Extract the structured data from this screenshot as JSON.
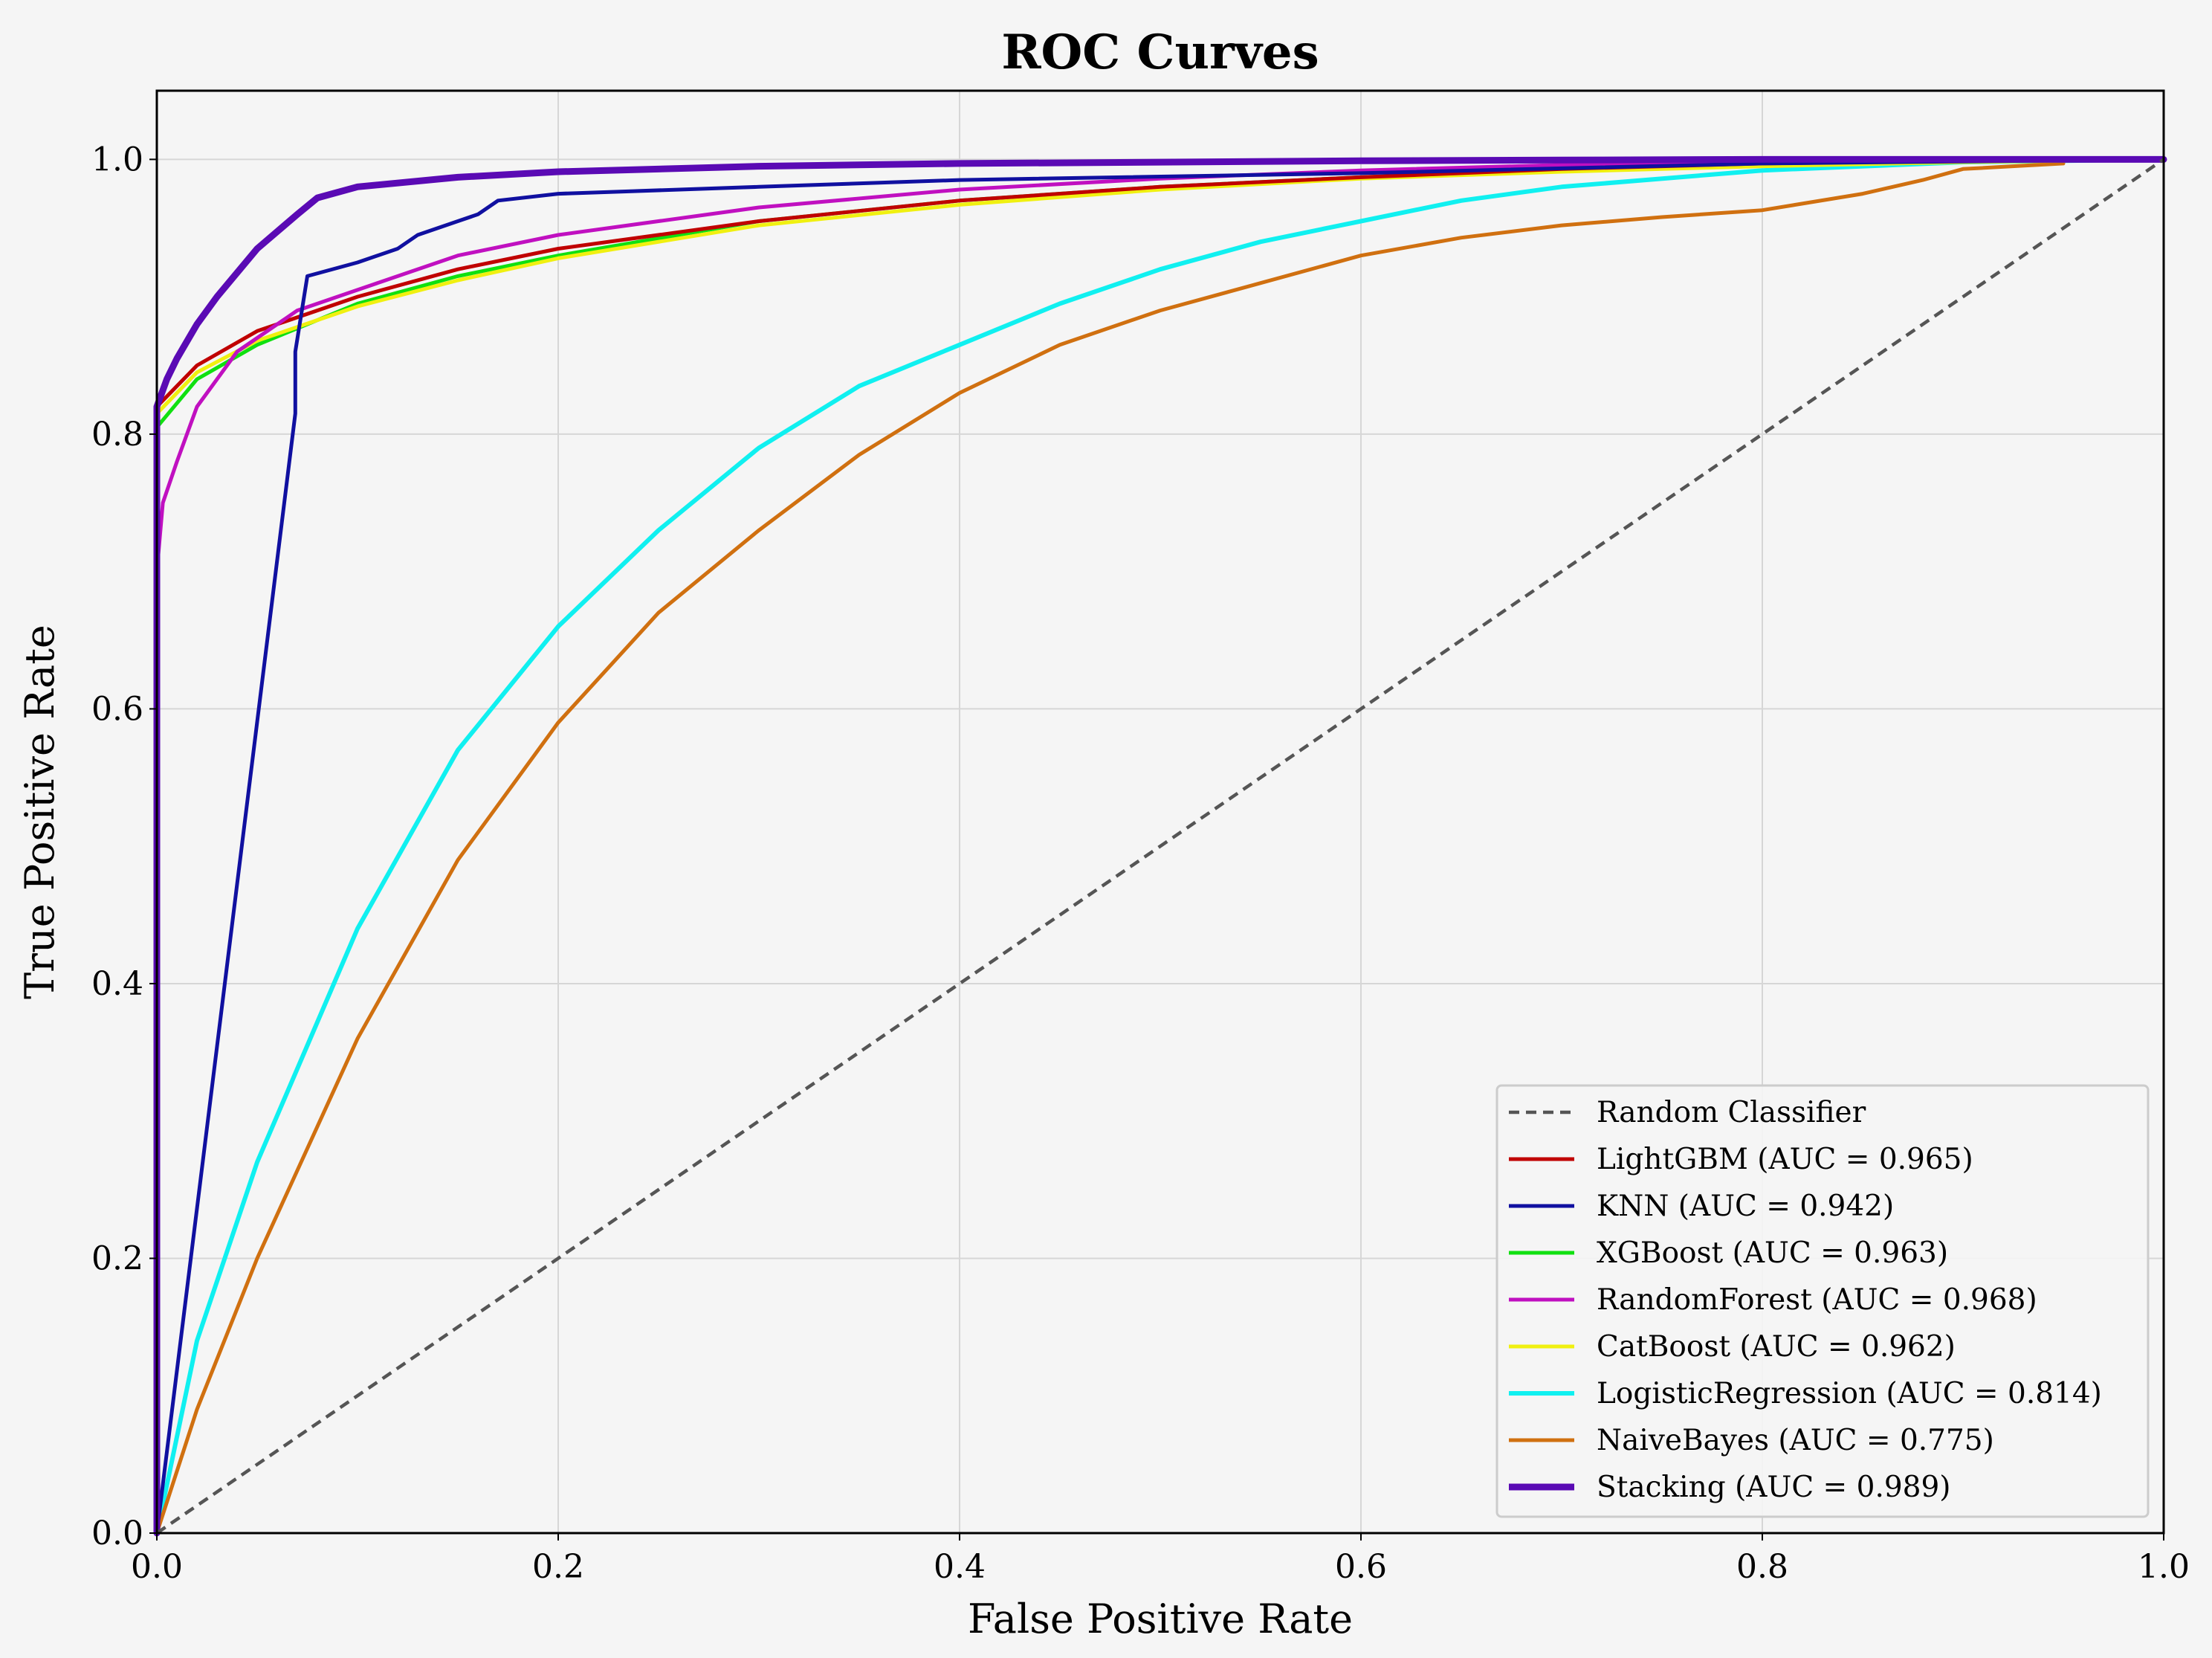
{
  "chart_data": {
    "type": "line",
    "title": "ROC Curves",
    "xlabel": "False Positive Rate",
    "ylabel": "True Positive Rate",
    "xlim": [
      0.0,
      1.0
    ],
    "ylim": [
      0.0,
      1.05
    ],
    "x_ticks": [
      "0.0",
      "0.2",
      "0.4",
      "0.6",
      "0.8",
      "1.0"
    ],
    "y_ticks": [
      "0.0",
      "0.2",
      "0.4",
      "0.6",
      "0.8",
      "1.0"
    ],
    "grid": true,
    "legend_position": "lower-right",
    "legend": [
      "Random Classifier",
      "LightGBM (AUC = 0.965)",
      "KNN (AUC = 0.942)",
      "XGBoost (AUC = 0.963)",
      "RandomForest (AUC = 0.968)",
      "CatBoost (AUC = 0.962)",
      "LogisticRegression (AUC = 0.814)",
      "NaiveBayes (AUC = 0.775)",
      "Stacking (AUC = 0.989)"
    ],
    "series": [
      {
        "name": "Random Classifier",
        "color": "#555555",
        "dashed": true,
        "width": 4.5,
        "x": [
          0,
          1
        ],
        "y": [
          0,
          1
        ]
      },
      {
        "name": "LightGBM",
        "color": "#c00000",
        "width": 5,
        "x": [
          0,
          0,
          0.02,
          0.05,
          0.1,
          0.15,
          0.2,
          0.3,
          0.4,
          0.5,
          0.6,
          0.7,
          0.8,
          0.9,
          1.0
        ],
        "y": [
          0,
          0.82,
          0.85,
          0.875,
          0.9,
          0.92,
          0.935,
          0.955,
          0.97,
          0.98,
          0.987,
          0.993,
          0.997,
          0.999,
          1.0
        ]
      },
      {
        "name": "KNN",
        "color": "#1010a0",
        "width": 5,
        "x": [
          0,
          0.069,
          0.069,
          0.075,
          0.1,
          0.12,
          0.13,
          0.14,
          0.15,
          0.16,
          0.17,
          0.2,
          0.3,
          0.4,
          0.6,
          0.8,
          1.0
        ],
        "y": [
          0,
          0.815,
          0.86,
          0.915,
          0.925,
          0.935,
          0.945,
          0.95,
          0.955,
          0.96,
          0.97,
          0.975,
          0.98,
          0.985,
          0.99,
          0.997,
          1.0
        ]
      },
      {
        "name": "XGBoost",
        "color": "#10e010",
        "width": 5,
        "x": [
          0,
          0,
          0.02,
          0.05,
          0.1,
          0.15,
          0.2,
          0.3,
          0.4,
          0.5,
          0.6,
          0.7,
          0.8,
          0.9,
          1.0
        ],
        "y": [
          0,
          0.805,
          0.84,
          0.865,
          0.895,
          0.915,
          0.93,
          0.955,
          0.97,
          0.98,
          0.987,
          0.993,
          0.997,
          0.999,
          1.0
        ]
      },
      {
        "name": "RandomForest",
        "color": "#c010c0",
        "width": 5,
        "x": [
          0,
          0,
          0.003,
          0.01,
          0.02,
          0.04,
          0.07,
          0.1,
          0.15,
          0.2,
          0.3,
          0.4,
          0.5,
          0.6,
          0.7,
          0.8,
          0.9,
          1.0
        ],
        "y": [
          0,
          0.7,
          0.75,
          0.78,
          0.82,
          0.86,
          0.89,
          0.905,
          0.93,
          0.945,
          0.965,
          0.978,
          0.986,
          0.992,
          0.996,
          0.998,
          0.999,
          1.0
        ]
      },
      {
        "name": "CatBoost",
        "color": "#f0f010",
        "width": 5,
        "x": [
          0,
          0,
          0.02,
          0.05,
          0.1,
          0.15,
          0.2,
          0.3,
          0.4,
          0.5,
          0.6,
          0.7,
          0.8,
          0.9,
          1.0
        ],
        "y": [
          0,
          0.815,
          0.845,
          0.868,
          0.893,
          0.912,
          0.928,
          0.952,
          0.967,
          0.978,
          0.986,
          0.991,
          0.995,
          0.998,
          1.0
        ]
      },
      {
        "name": "LogisticRegression",
        "color": "#10f0f0",
        "width": 6,
        "x": [
          0,
          0.02,
          0.05,
          0.1,
          0.15,
          0.2,
          0.25,
          0.3,
          0.35,
          0.4,
          0.45,
          0.5,
          0.55,
          0.6,
          0.65,
          0.7,
          0.8,
          0.9,
          1.0
        ],
        "y": [
          0,
          0.14,
          0.27,
          0.44,
          0.57,
          0.66,
          0.73,
          0.79,
          0.835,
          0.865,
          0.895,
          0.92,
          0.94,
          0.955,
          0.97,
          0.98,
          0.992,
          0.998,
          1.0
        ]
      },
      {
        "name": "NaiveBayes",
        "color": "#d07010",
        "width": 5,
        "x": [
          0,
          0.02,
          0.05,
          0.1,
          0.15,
          0.2,
          0.25,
          0.3,
          0.35,
          0.4,
          0.45,
          0.5,
          0.55,
          0.6,
          0.65,
          0.7,
          0.75,
          0.8,
          0.85,
          0.88,
          0.9,
          0.95
        ],
        "y": [
          0,
          0.09,
          0.2,
          0.36,
          0.49,
          0.59,
          0.67,
          0.73,
          0.785,
          0.83,
          0.865,
          0.89,
          0.91,
          0.93,
          0.943,
          0.952,
          0.958,
          0.963,
          0.975,
          0.985,
          0.993,
          0.997
        ]
      },
      {
        "name": "Stacking",
        "color": "#5a0ab4",
        "width": 9,
        "x": [
          0,
          0,
          0.005,
          0.01,
          0.02,
          0.03,
          0.05,
          0.07,
          0.08,
          0.1,
          0.15,
          0.2,
          0.3,
          0.4,
          0.5,
          0.6,
          0.7,
          0.8,
          0.9,
          1.0
        ],
        "y": [
          0,
          0.82,
          0.84,
          0.855,
          0.88,
          0.9,
          0.935,
          0.96,
          0.972,
          0.98,
          0.987,
          0.991,
          0.995,
          0.997,
          0.998,
          0.999,
          0.9995,
          1.0,
          1.0,
          1.0
        ]
      }
    ]
  }
}
